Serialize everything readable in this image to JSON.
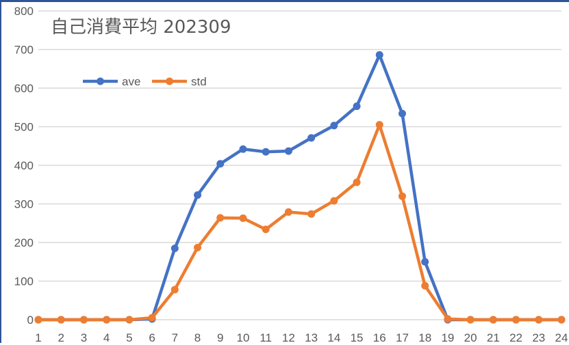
{
  "chart_data": {
    "type": "line",
    "title": "自己消費平均  202309",
    "xlabel": "",
    "ylabel": "",
    "ylim": [
      0,
      800
    ],
    "yticks": [
      0,
      100,
      200,
      300,
      400,
      500,
      600,
      700,
      800
    ],
    "grid": true,
    "legend_position": "top-left (inside plot)",
    "categories": [
      "1",
      "2",
      "3",
      "4",
      "5",
      "6",
      "7",
      "8",
      "9",
      "10",
      "11",
      "12",
      "13",
      "14",
      "15",
      "16",
      "17",
      "18",
      "19",
      "20",
      "21",
      "22",
      "23",
      "24"
    ],
    "series": [
      {
        "name": "ave",
        "color": "#4472C4",
        "values": [
          0,
          0,
          0,
          0,
          0,
          2,
          185,
          323,
          404,
          442,
          435,
          437,
          471,
          503,
          553,
          686,
          534,
          150,
          0,
          0,
          0,
          0,
          0,
          0
        ]
      },
      {
        "name": "std",
        "color": "#ED7D31",
        "values": [
          0,
          0,
          0,
          0,
          0,
          5,
          78,
          187,
          264,
          263,
          234,
          279,
          274,
          308,
          356,
          505,
          320,
          88,
          2,
          0,
          0,
          0,
          0,
          0
        ]
      }
    ]
  },
  "colors": {
    "frame_border": "#2F5597",
    "gridline": "#D9D9D9",
    "text": "#595959"
  }
}
